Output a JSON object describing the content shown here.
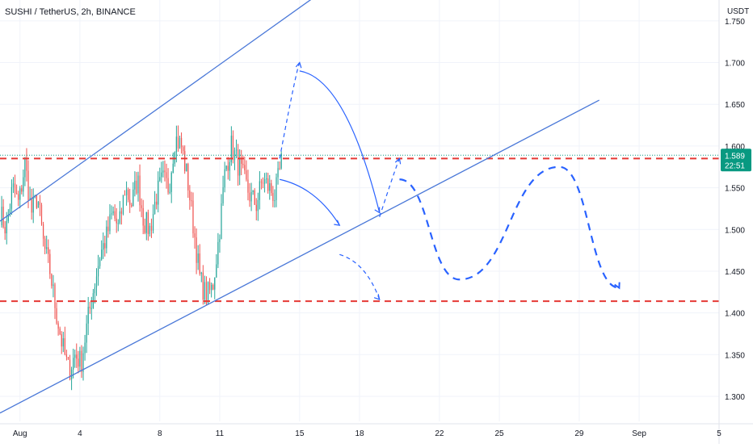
{
  "header": {
    "symbol": "SUSHI / TetherUS, 2h, BINANCE",
    "unit": "USDT"
  },
  "colors": {
    "bull": "#26a69a",
    "bear": "#ef5350",
    "channel": "#4a78d8",
    "support": "#e53935",
    "forecast": "#2962ff",
    "badge": "#089981",
    "grid": "#f0f3fa",
    "axis_text": "#131722"
  },
  "chart_data": {
    "type": "candlestick",
    "title": "",
    "xlabel": "",
    "ylabel": "",
    "ylim": [
      1.27,
      1.775
    ],
    "yticks": [
      "1.300",
      "1.350",
      "1.400",
      "1.450",
      "1.500",
      "1.550",
      "1.600",
      "1.650",
      "1.700",
      "1.750"
    ],
    "y_ticks_values": [
      1.3,
      1.35,
      1.4,
      1.45,
      1.5,
      1.55,
      1.6,
      1.65,
      1.7,
      1.75
    ],
    "xlim": [
      "2023-07-31",
      "2023-09-05"
    ],
    "xticks": [
      {
        "label": "Aug",
        "date": "2023-08-01"
      },
      {
        "label": "4",
        "date": "2023-08-04"
      },
      {
        "label": "8",
        "date": "2023-08-08"
      },
      {
        "label": "11",
        "date": "2023-08-11"
      },
      {
        "label": "15",
        "date": "2023-08-15"
      },
      {
        "label": "18",
        "date": "2023-08-18"
      },
      {
        "label": "22",
        "date": "2023-08-22"
      },
      {
        "label": "25",
        "date": "2023-08-25"
      },
      {
        "label": "29",
        "date": "2023-08-29"
      },
      {
        "label": "Sep",
        "date": "2023-09-01"
      },
      {
        "label": "5",
        "date": "2023-09-05"
      }
    ],
    "grid": true,
    "price_path": [
      1.52,
      1.5,
      1.55,
      1.53,
      1.58,
      1.52,
      1.54,
      1.48,
      1.45,
      1.4,
      1.36,
      1.33,
      1.35,
      1.34,
      1.39,
      1.43,
      1.47,
      1.49,
      1.52,
      1.5,
      1.55,
      1.53,
      1.56,
      1.51,
      1.5,
      1.54,
      1.56,
      1.55,
      1.61,
      1.6,
      1.56,
      1.5,
      1.44,
      1.42,
      1.43,
      1.49,
      1.57,
      1.6,
      1.58,
      1.56,
      1.54,
      1.53,
      1.56,
      1.55,
      1.54,
      1.58
    ],
    "last_price": "1.589",
    "countdown": "22:51",
    "channel": {
      "upper": [
        [
          "2023-07-31",
          1.51
        ],
        [
          "2023-08-17",
          1.8
        ]
      ],
      "lower": [
        [
          "2023-07-31",
          1.28
        ],
        [
          "2023-08-30",
          1.655
        ]
      ]
    },
    "support_levels": [
      {
        "value": 1.585,
        "from": "2023-07-31",
        "to": "2023-09-05"
      },
      {
        "value": 1.414,
        "from": "2023-07-31",
        "to": "2023-09-05"
      }
    ],
    "current_price_line": 1.589,
    "forecasts": [
      {
        "style": "dashed",
        "points": [
          [
            "2023-08-14",
            1.585
          ],
          [
            "2023-08-15",
            1.7
          ]
        ]
      },
      {
        "style": "solid",
        "points": [
          [
            "2023-08-15",
            1.69
          ],
          [
            "2023-08-19",
            1.52
          ]
        ]
      },
      {
        "style": "solid",
        "points": [
          [
            "2023-08-14",
            1.56
          ],
          [
            "2023-08-17",
            1.505
          ]
        ]
      },
      {
        "style": "dashed",
        "points": [
          [
            "2023-08-17",
            1.47
          ],
          [
            "2023-08-19",
            1.416
          ]
        ]
      },
      {
        "style": "dashed",
        "points": [
          [
            "2023-08-19",
            1.515
          ],
          [
            "2023-08-20",
            1.585
          ]
        ]
      },
      {
        "style": "bold-dashed",
        "points": [
          [
            "2023-08-20",
            1.56
          ],
          [
            "2023-08-23",
            1.44
          ],
          [
            "2023-08-28",
            1.575
          ],
          [
            "2023-08-31",
            1.43
          ]
        ]
      }
    ]
  }
}
